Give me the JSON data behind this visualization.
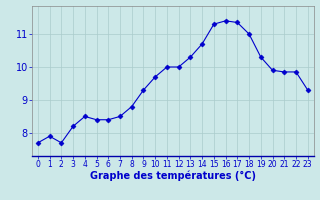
{
  "hours": [
    0,
    1,
    2,
    3,
    4,
    5,
    6,
    7,
    8,
    9,
    10,
    11,
    12,
    13,
    14,
    15,
    16,
    17,
    18,
    19,
    20,
    21,
    22,
    23
  ],
  "temps": [
    7.7,
    7.9,
    7.7,
    8.2,
    8.5,
    8.4,
    8.4,
    8.5,
    8.8,
    9.3,
    9.7,
    10.0,
    10.0,
    10.3,
    10.7,
    11.3,
    11.4,
    11.35,
    11.0,
    10.3,
    9.9,
    9.85,
    9.85,
    9.3
  ],
  "line_color": "#0000cc",
  "marker": "D",
  "marker_size": 2.5,
  "bg_color": "#cce8e8",
  "grid_color": "#aacccc",
  "xlabel": "Graphe des températures (°C)",
  "xlabel_color": "#0000cc",
  "xlabel_fontsize": 7,
  "tick_color": "#0000cc",
  "tick_fontsize": 5.5,
  "ytick_fontsize": 7,
  "ylim": [
    7.3,
    11.85
  ],
  "yticks": [
    8,
    9,
    10,
    11
  ],
  "xlim": [
    -0.5,
    23.5
  ],
  "xticks": [
    0,
    1,
    2,
    3,
    4,
    5,
    6,
    7,
    8,
    9,
    10,
    11,
    12,
    13,
    14,
    15,
    16,
    17,
    18,
    19,
    20,
    21,
    22,
    23
  ]
}
